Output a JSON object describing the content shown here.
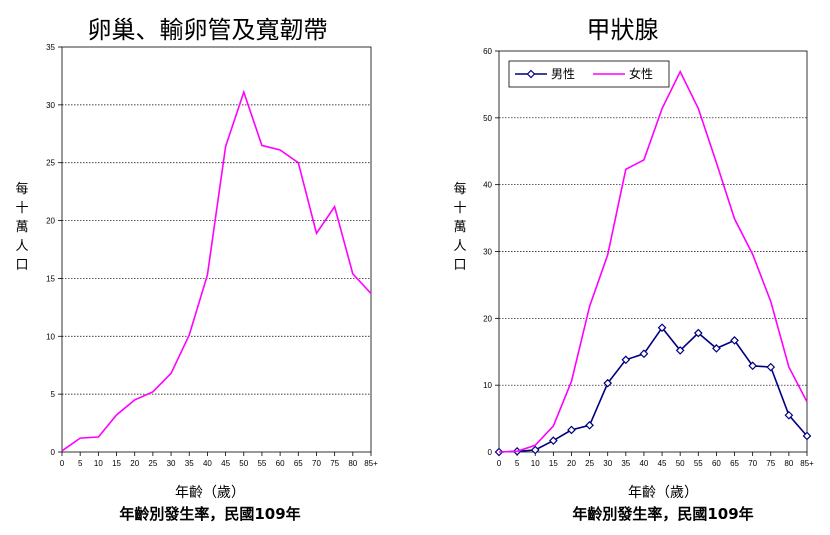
{
  "charts": [
    {
      "type": "line",
      "title": "卵巢、輸卵管及寬韌帶",
      "ylabel": "每十萬人口",
      "xlabel": "年齡（歲）",
      "caption": "年齡別發生率，民國109年",
      "categories": [
        "0",
        "5",
        "10",
        "15",
        "20",
        "25",
        "30",
        "35",
        "40",
        "45",
        "50",
        "55",
        "60",
        "65",
        "70",
        "75",
        "80",
        "85+"
      ],
      "ylim": [
        0,
        35
      ],
      "yticks": [
        "0",
        "5",
        "10",
        "15",
        "20",
        "25",
        "30",
        "35"
      ],
      "grid": true,
      "legend": null,
      "series": [
        {
          "color": "#ff00ff",
          "markers": false,
          "values": [
            0.1,
            1.2,
            1.3,
            3.2,
            4.5,
            5.2,
            6.8,
            10.1,
            15.3,
            26.4,
            31.1,
            26.5,
            26.1,
            25.0,
            18.9,
            21.2,
            15.4,
            13.7
          ]
        }
      ]
    },
    {
      "type": "line",
      "title": "甲狀腺",
      "ylabel": "每十萬人口",
      "xlabel": "年齡（歲）",
      "caption": "年齡別發生率，民國109年",
      "categories": [
        "0",
        "5",
        "10",
        "15",
        "20",
        "25",
        "30",
        "35",
        "40",
        "45",
        "50",
        "55",
        "60",
        "65",
        "70",
        "75",
        "80",
        "85+"
      ],
      "ylim": [
        0,
        60
      ],
      "yticks": [
        "0",
        "10",
        "20",
        "30",
        "40",
        "50",
        "60"
      ],
      "grid": true,
      "legend": "top-left",
      "series": [
        {
          "name": "男性",
          "color": "#000080",
          "markers": true,
          "values": [
            0.0,
            0.1,
            0.3,
            1.7,
            3.3,
            4.0,
            10.3,
            13.8,
            14.7,
            18.6,
            15.2,
            17.8,
            15.5,
            16.7,
            12.9,
            12.7,
            5.5,
            2.4
          ]
        },
        {
          "name": "女性",
          "color": "#ff00ff",
          "markers": false,
          "values": [
            0.0,
            0.1,
            1.0,
            3.9,
            10.6,
            21.8,
            29.5,
            42.3,
            43.7,
            51.4,
            56.9,
            51.4,
            43.3,
            34.9,
            29.6,
            22.5,
            12.7,
            7.5
          ]
        }
      ]
    }
  ]
}
